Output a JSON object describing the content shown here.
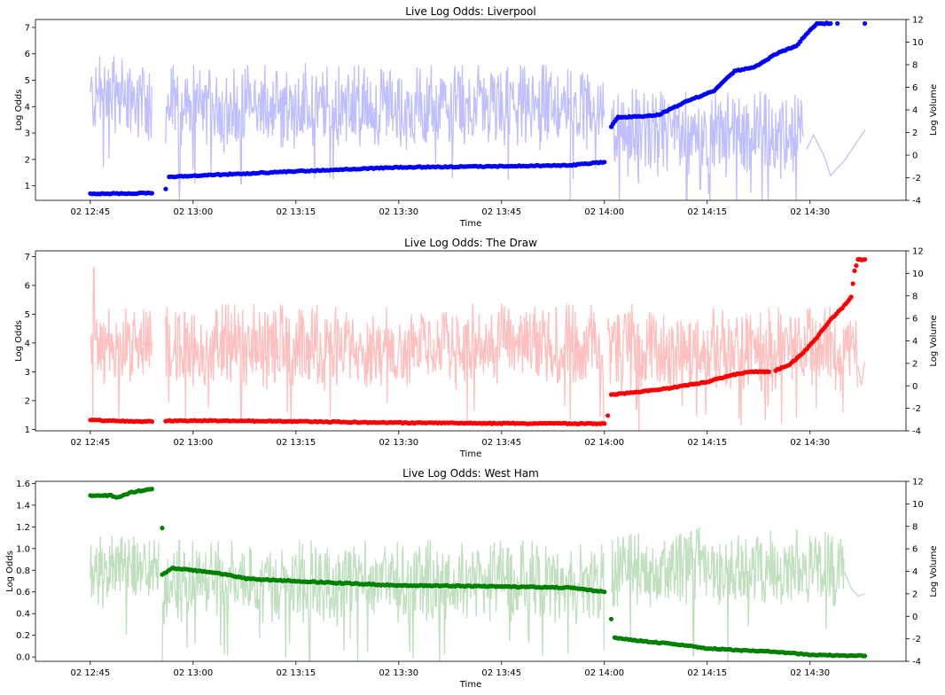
{
  "chart_data": [
    {
      "type": "line",
      "title": "Live Log Odds: Liverpool",
      "xlabel": "Time",
      "ylabel": "Log Odds",
      "y2label": "Log Volume",
      "x_ticks": [
        "02 12:45",
        "02 13:00",
        "02 13:15",
        "02 13:30",
        "02 13:45",
        "02 14:00",
        "02 14:15",
        "02 14:30"
      ],
      "ylim": [
        0.45,
        7.3
      ],
      "y_ticks": [
        1,
        2,
        3,
        4,
        5,
        6,
        7
      ],
      "y2lim": [
        -4,
        12
      ],
      "y2_ticks": [
        -4,
        -2,
        0,
        2,
        4,
        6,
        8,
        10,
        12
      ],
      "colors": {
        "odds": "#0000ff",
        "volume": "#bfbfff"
      },
      "series": [
        {
          "role": "odds",
          "style": "markers",
          "segments": [
            {
              "points": [
                [
                  "12:45",
                  0.7
                ],
                [
                  "12:54",
                  0.72
                ]
              ]
            },
            {
              "points": [
                [
                  "12:56",
                  0.88
                ]
              ]
            },
            {
              "points": [
                [
                  "12:56.5",
                  1.34
                ],
                [
                  "13:00",
                  1.38
                ],
                [
                  "13:15",
                  1.55
                ],
                [
                  "13:30",
                  1.7
                ],
                [
                  "13:45",
                  1.74
                ],
                [
                  "13:55",
                  1.78
                ],
                [
                  "14:00",
                  1.9
                ]
              ]
            },
            {
              "points": [
                [
                  "14:01",
                  3.25
                ],
                [
                  "14:02",
                  3.6
                ],
                [
                  "14:05",
                  3.62
                ],
                [
                  "14:08",
                  3.7
                ],
                [
                  "14:12",
                  4.2
                ],
                [
                  "14:16",
                  4.6
                ],
                [
                  "14:19",
                  5.35
                ],
                [
                  "14:22",
                  5.5
                ],
                [
                  "14:25",
                  6.0
                ],
                [
                  "14:28",
                  6.3
                ],
                [
                  "14:30",
                  6.9
                ],
                [
                  "14:31",
                  7.15
                ],
                [
                  "14:33",
                  7.15
                ]
              ]
            },
            {
              "points": [
                [
                  "14:34",
                  7.15
                ]
              ]
            },
            {
              "points": [
                [
                  "14:38",
                  7.15
                ]
              ]
            }
          ]
        },
        {
          "role": "volume",
          "style": "noisy-line",
          "axis": "right",
          "segments": [
            {
              "start": "12:45",
              "end": "12:54",
              "level": 5.0,
              "amp": 3.0,
              "noise": 0.35,
              "dips": []
            },
            {
              "start": "12:56",
              "end": "13:55",
              "level": 4.2,
              "amp": 3.0,
              "noise": 0.35,
              "dips": [
                [
                  "12:58",
                  -4
                ],
                [
                  "13:07",
                  -2.5
                ],
                [
                  "13:20",
                  -2
                ],
                [
                  "13:46",
                  -2.2
                ]
              ]
            },
            {
              "start": "13:55",
              "end": "14:00",
              "level": 4.0,
              "amp": 3.0,
              "noise": 0.35,
              "dips": [
                [
                  "13:55",
                  -4
                ]
              ]
            },
            {
              "start": "14:01",
              "end": "14:29",
              "level": 1.9,
              "amp": 3.0,
              "noise": 0.4,
              "dips": [
                [
                  "14:05",
                  -2.5
                ],
                [
                  "14:12",
                  -4
                ],
                [
                  "14:14",
                  -3
                ],
                [
                  "14:23",
                  -4
                ],
                [
                  "14:28",
                  -4
                ]
              ]
            },
            {
              "start": "14:29.5",
              "end": "14:38",
              "level": 0,
              "amp": 0,
              "noise": 0,
              "path": [
                [
                  "14:29.5",
                  0.5
                ],
                [
                  "14:30.5",
                  1.8
                ],
                [
                  "14:32",
                  0.0
                ],
                [
                  "14:33",
                  -1.8
                ],
                [
                  "14:35",
                  -0.5
                ],
                [
                  "14:38",
                  2.2
                ]
              ]
            }
          ]
        }
      ]
    },
    {
      "type": "line",
      "title": "Live Log Odds: The Draw",
      "xlabel": "Time",
      "ylabel": "Log Odds",
      "y2label": "Log Volume",
      "x_ticks": [
        "02 12:45",
        "02 13:00",
        "02 13:15",
        "02 13:30",
        "02 13:45",
        "02 14:00",
        "02 14:15",
        "02 14:30"
      ],
      "ylim": [
        0.95,
        7.2
      ],
      "y_ticks": [
        1,
        2,
        3,
        4,
        5,
        6,
        7
      ],
      "y2lim": [
        -4,
        12
      ],
      "y2_ticks": [
        -4,
        -2,
        0,
        2,
        4,
        6,
        8,
        10,
        12
      ],
      "colors": {
        "odds": "#ff0000",
        "volume": "#ffbfbf"
      },
      "series": [
        {
          "role": "odds",
          "style": "markers",
          "segments": [
            {
              "points": [
                [
                  "12:45",
                  1.32
                ],
                [
                  "12:54",
                  1.27
                ]
              ]
            },
            {
              "points": [
                [
                  "12:56",
                  1.3
                ],
                [
                  "13:05",
                  1.3
                ],
                [
                  "13:15",
                  1.28
                ],
                [
                  "13:30",
                  1.23
                ],
                [
                  "13:45",
                  1.21
                ],
                [
                  "14:00",
                  1.2
                ]
              ]
            },
            {
              "points": [
                [
                  "14:00.5",
                  1.48
                ]
              ]
            },
            {
              "points": [
                [
                  "14:01",
                  2.2
                ],
                [
                  "14:05",
                  2.3
                ],
                [
                  "14:10",
                  2.45
                ],
                [
                  "14:15",
                  2.65
                ],
                [
                  "14:18",
                  2.85
                ],
                [
                  "14:21",
                  3.0
                ],
                [
                  "14:24",
                  3.0
                ]
              ]
            },
            {
              "points": [
                [
                  "14:25",
                  3.05
                ],
                [
                  "14:27",
                  3.25
                ],
                [
                  "14:29",
                  3.65
                ],
                [
                  "14:31",
                  4.2
                ],
                [
                  "14:33",
                  4.8
                ],
                [
                  "14:35",
                  5.3
                ],
                [
                  "14:36",
                  5.6
                ],
                [
                  "14:36.5",
                  6.5
                ],
                [
                  "14:37",
                  6.9
                ],
                [
                  "14:38",
                  6.9
                ]
              ]
            }
          ]
        },
        {
          "role": "volume",
          "style": "noisy-line",
          "axis": "right",
          "segments": [
            {
              "start": "12:45",
              "end": "12:54",
              "level": 3.6,
              "amp": 3.0,
              "noise": 0.35,
              "dips": [
                [
                  "12:45.5",
                  10.5
                ]
              ]
            },
            {
              "start": "12:56",
              "end": "14:00",
              "level": 3.5,
              "amp": 3.0,
              "noise": 0.35,
              "dips": [
                [
                  "13:07",
                  -3
                ],
                [
                  "13:20",
                  -2.8
                ],
                [
                  "13:41",
                  -2.2
                ],
                [
                  "13:55",
                  -3
                ]
              ]
            },
            {
              "start": "14:00.5",
              "end": "14:37",
              "level": 3.2,
              "amp": 3.0,
              "noise": 0.4,
              "dips": [
                [
                  "14:05",
                  -4
                ],
                [
                  "14:20",
                  -3.5
                ],
                [
                  "14:28",
                  -2.8
                ]
              ]
            },
            {
              "start": "14:37",
              "end": "14:38",
              "level": 0,
              "amp": 0,
              "noise": 0,
              "path": [
                [
                  "14:37",
                  1.8
                ],
                [
                  "14:37.5",
                  0.0
                ],
                [
                  "14:38",
                  2.2
                ]
              ]
            }
          ]
        }
      ]
    },
    {
      "type": "line",
      "title": "Live Log Odds: West Ham",
      "xlabel": "Time",
      "ylabel": "Log Odds",
      "y2label": "Log Volume",
      "x_ticks": [
        "02 12:45",
        "02 13:00",
        "02 13:15",
        "02 13:30",
        "02 13:45",
        "02 14:00",
        "02 14:15",
        "02 14:30"
      ],
      "ylim": [
        -0.04,
        1.62
      ],
      "y_ticks": [
        0.0,
        0.2,
        0.4,
        0.6,
        0.8,
        1.0,
        1.2,
        1.4,
        1.6
      ],
      "y2lim": [
        -4,
        12
      ],
      "y2_ticks": [
        -4,
        -2,
        0,
        2,
        4,
        6,
        8,
        10,
        12
      ],
      "colors": {
        "odds": "#008000",
        "volume": "#bfdfbf"
      },
      "series": [
        {
          "role": "odds",
          "style": "markers",
          "segments": [
            {
              "points": [
                [
                  "12:45",
                  1.49
                ],
                [
                  "12:48",
                  1.49
                ],
                [
                  "12:49",
                  1.47
                ],
                [
                  "12:51",
                  1.52
                ],
                [
                  "12:54",
                  1.55
                ]
              ]
            },
            {
              "points": [
                [
                  "12:55.5",
                  1.19
                ]
              ]
            },
            {
              "points": [
                [
                  "12:55.5",
                  0.76
                ],
                [
                  "12:57",
                  0.82
                ],
                [
                  "13:00",
                  0.8
                ],
                [
                  "13:05",
                  0.76
                ],
                [
                  "13:08",
                  0.72
                ],
                [
                  "13:15",
                  0.7
                ],
                [
                  "13:22",
                  0.68
                ],
                [
                  "13:30",
                  0.66
                ],
                [
                  "13:45",
                  0.65
                ],
                [
                  "13:55",
                  0.64
                ],
                [
                  "14:00",
                  0.6
                ]
              ]
            },
            {
              "points": [
                [
                  "14:01",
                  0.35
                ]
              ]
            },
            {
              "points": [
                [
                  "14:01.5",
                  0.18
                ],
                [
                  "14:05",
                  0.15
                ],
                [
                  "14:10",
                  0.12
                ],
                [
                  "14:15",
                  0.08
                ],
                [
                  "14:20",
                  0.06
                ],
                [
                  "14:25",
                  0.05
                ],
                [
                  "14:30",
                  0.02
                ],
                [
                  "14:38",
                  0.01
                ]
              ]
            }
          ]
        },
        {
          "role": "volume",
          "style": "noisy-line",
          "axis": "right",
          "segments": [
            {
              "start": "12:45",
              "end": "12:55",
              "level": 4.0,
              "amp": 2.5,
              "noise": 0.35,
              "dips": []
            },
            {
              "start": "12:55.5",
              "end": "14:00",
              "level": 3.0,
              "amp": 3.0,
              "noise": 0.35,
              "dips": [
                [
                  "12:55.5",
                  -4
                ],
                [
                  "13:05",
                  -3.5
                ],
                [
                  "13:17",
                  -4
                ],
                [
                  "13:22",
                  -3
                ],
                [
                  "13:24",
                  -4
                ],
                [
                  "13:36",
                  -4
                ],
                [
                  "13:51",
                  -3.5
                ],
                [
                  "14:00",
                  -3
                ]
              ]
            },
            {
              "start": "14:01",
              "end": "14:35",
              "level": 4.2,
              "amp": 3.0,
              "noise": 0.35,
              "dips": [
                [
                  "14:13",
                  -3.5
                ],
                [
                  "14:18",
                  -4
                ]
              ]
            },
            {
              "start": "14:35",
              "end": "14:38",
              "level": 0,
              "amp": 0,
              "noise": 0,
              "path": [
                [
                  "14:35",
                  4.0
                ],
                [
                  "14:36",
                  2.5
                ],
                [
                  "14:37",
                  1.8
                ],
                [
                  "14:38",
                  2.0
                ]
              ]
            }
          ]
        }
      ]
    }
  ]
}
